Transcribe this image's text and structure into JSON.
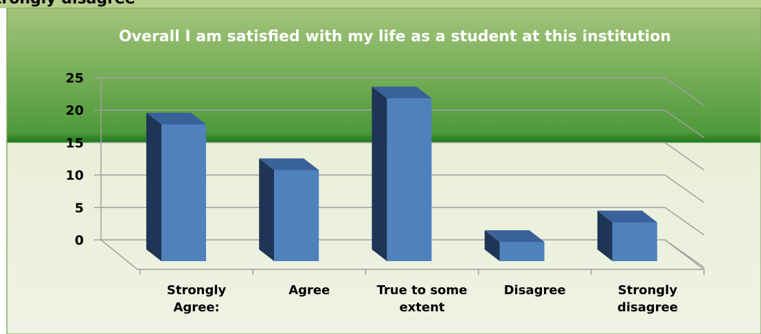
{
  "header": "Strongly disagree",
  "chart_data": {
    "type": "bar3d",
    "title": "Overall I am satisfied with my life as a student at this institution",
    "categories": [
      "Strongly Agree:",
      "Agree",
      "True to some extent",
      "Disagree",
      "Strongly disagree"
    ],
    "values": [
      18,
      11,
      22,
      0,
      3
    ],
    "color": "#4f81bd",
    "ylim": [
      0,
      25
    ],
    "yticks": [
      0,
      5,
      10,
      15,
      20,
      25
    ],
    "grid": true
  }
}
